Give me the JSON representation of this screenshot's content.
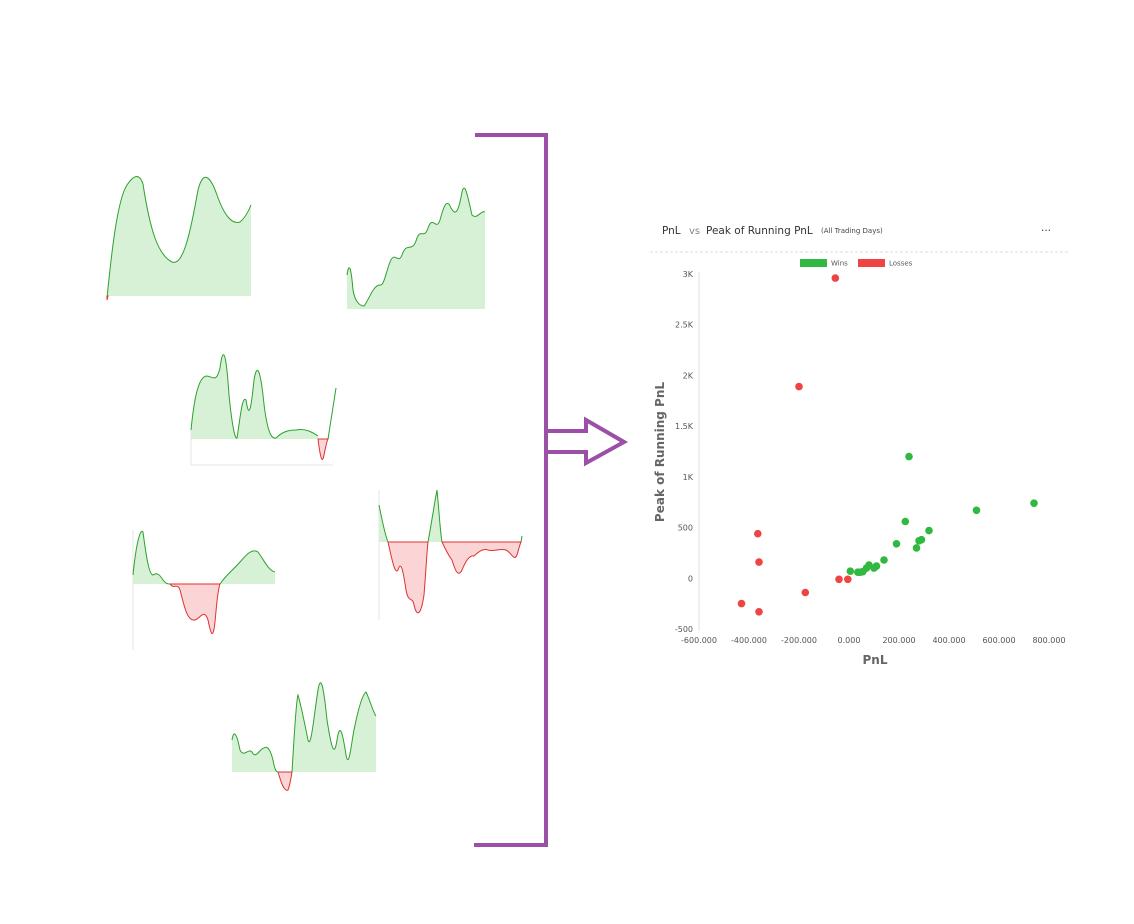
{
  "header": {
    "title_left": "PnL",
    "vs": "vs",
    "title_right": "Peak of Running PnL",
    "subtitle": "(All Trading Days)",
    "menu": "···"
  },
  "colors": {
    "accent": "#9b4fa6",
    "win_line": "#2ea02e",
    "win_fill": "#d6f1d6",
    "loss_line": "#e03030",
    "loss_fill": "#fbd5d5",
    "win_dot": "#30b840",
    "loss_dot": "#ef4444"
  },
  "chart_data": {
    "type": "scatter",
    "xlabel": "PnL",
    "ylabel": "Peak of Running PnL",
    "xlim": [
      -600,
      800
    ],
    "ylim": [
      -500,
      3000
    ],
    "x_ticks": [
      "-600.000",
      "-400.000",
      "-200.000",
      "0.000",
      "200.000",
      "400.000",
      "600.000",
      "800.000"
    ],
    "y_ticks": [
      "-500",
      "0",
      "500",
      "1K",
      "1.5K",
      "2K",
      "2.5K",
      "3K"
    ],
    "legend_position": "top-center",
    "series": [
      {
        "name": "Wins",
        "color": "#30b840",
        "points": [
          [
            5,
            70
          ],
          [
            35,
            60
          ],
          [
            45,
            60
          ],
          [
            55,
            65
          ],
          [
            70,
            100
          ],
          [
            80,
            130
          ],
          [
            100,
            100
          ],
          [
            110,
            120
          ],
          [
            140,
            180
          ],
          [
            190,
            340
          ],
          [
            225,
            560
          ],
          [
            240,
            1200
          ],
          [
            270,
            300
          ],
          [
            280,
            370
          ],
          [
            290,
            380
          ],
          [
            320,
            470
          ],
          [
            510,
            670
          ],
          [
            740,
            740
          ]
        ]
      },
      {
        "name": "Losses",
        "color": "#ef4444",
        "points": [
          [
            -430,
            -250
          ],
          [
            -360,
            -330
          ],
          [
            -360,
            160
          ],
          [
            -365,
            440
          ],
          [
            -200,
            1890
          ],
          [
            -175,
            -140
          ],
          [
            -55,
            2960
          ],
          [
            -40,
            -10
          ],
          [
            -5,
            -10
          ]
        ]
      }
    ]
  }
}
